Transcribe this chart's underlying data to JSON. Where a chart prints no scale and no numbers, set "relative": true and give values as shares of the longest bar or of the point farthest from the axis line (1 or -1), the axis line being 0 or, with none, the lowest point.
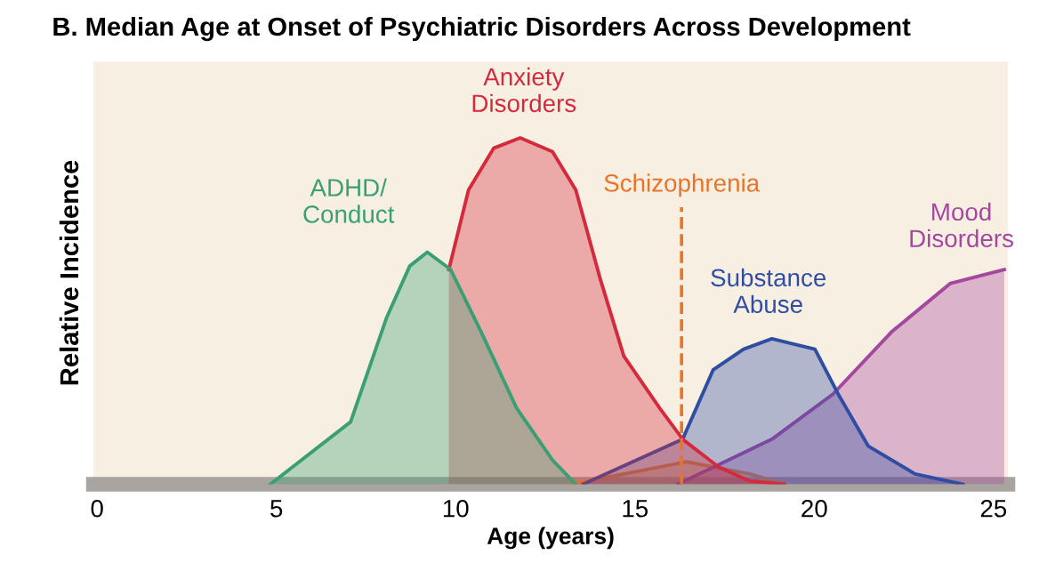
{
  "chart_data": {
    "type": "area",
    "title": "B. Median Age at Onset of Psychiatric Disorders Across Development",
    "xlabel": "Age (years)",
    "ylabel": "Relative Incidence",
    "relative": true,
    "xlim": [
      -0.1,
      25.4
    ],
    "xticks": [
      0,
      5,
      10,
      15,
      20,
      25
    ],
    "grid": false,
    "legend": false,
    "series": [
      {
        "name": "ADHD/\nConduct",
        "color": "#3a9f74",
        "x": [
          4.83,
          7.07,
          8.07,
          8.72,
          9.21,
          9.86,
          10.71,
          11.7,
          12.7,
          13.35
        ],
        "values": [
          0,
          0.18,
          0.48,
          0.63,
          0.67,
          0.62,
          0.44,
          0.22,
          0.07,
          0
        ]
      },
      {
        "name": "Anxiety\nDisorders",
        "color": "#d42a3c",
        "x": [
          9.81,
          10.36,
          11.06,
          11.8,
          12.7,
          13.35,
          14.04,
          14.69,
          15.69,
          16.33,
          17.33,
          18.18,
          19.17
        ],
        "values": [
          0.62,
          0.85,
          0.97,
          1,
          0.96,
          0.85,
          0.59,
          0.37,
          0.22,
          0.13,
          0.05,
          0.01,
          0
        ]
      },
      {
        "name": "Substance\nAbuse",
        "color": "#2f4ea3",
        "x": [
          13.55,
          16.33,
          17.18,
          18.03,
          18.82,
          20.02,
          20.67,
          21.51,
          22.81,
          24.15
        ],
        "values": [
          0,
          0.13,
          0.33,
          0.39,
          0.42,
          0.39,
          0.26,
          0.11,
          0.03,
          0
        ]
      },
      {
        "name": "Mood\nDisorders",
        "color": "#a5479f",
        "x": [
          16.19,
          18.82,
          20.52,
          22.16,
          23.8,
          25.3
        ],
        "values": [
          0,
          0.13,
          0.26,
          0.44,
          0.58,
          0.62
        ]
      },
      {
        "color": "#e8912f",
        "x": [
          13.2,
          14.7,
          16.43,
          18.2,
          19.2
        ],
        "values": [
          0,
          0.03,
          0.065,
          0.03,
          0
        ]
      }
    ],
    "ref_lines": [
      {
        "axis": "x",
        "value": 16.3,
        "label": "Schizophrenia",
        "color": "#e8742a",
        "line_style": "dashed"
      }
    ]
  }
}
